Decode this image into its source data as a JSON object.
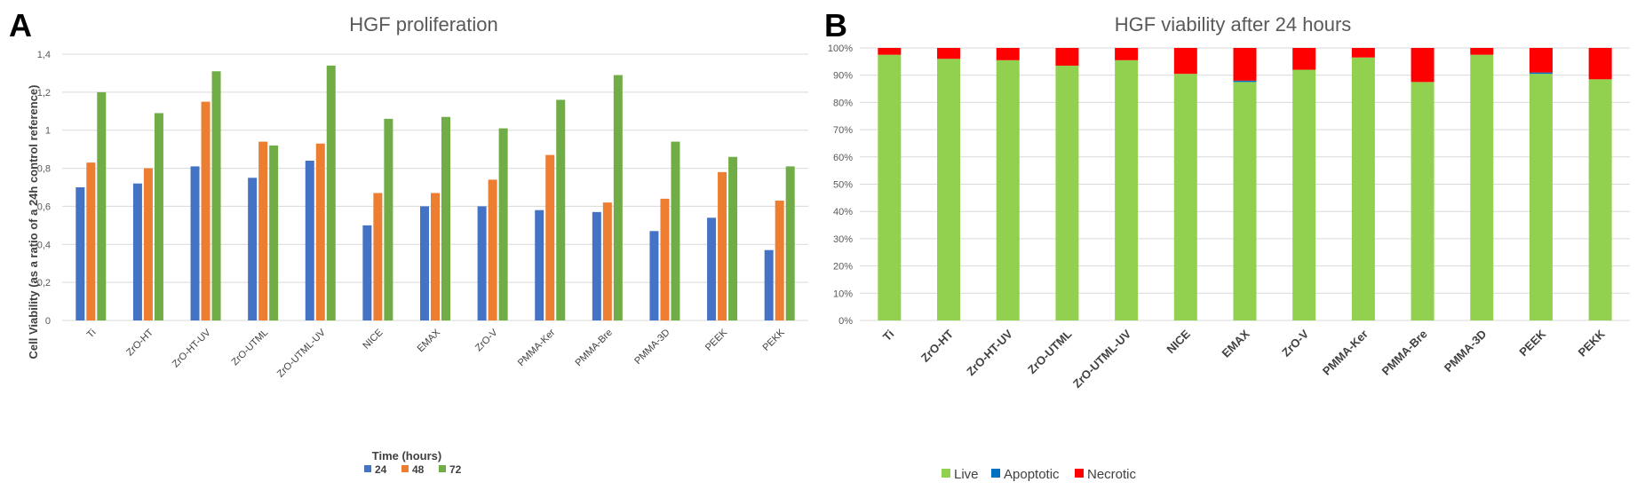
{
  "panels": {
    "a_letter": "A",
    "b_letter": "B"
  },
  "chart_data": [
    {
      "type": "bar",
      "title": "HGF proliferation",
      "ylabel": "Cell Viability  (as a ratio of a 24h control reference)",
      "xlabel": "",
      "ylim": [
        0,
        1.4
      ],
      "yticks": [
        "0",
        "0,2",
        "0,4",
        "0,6",
        "0,8",
        "1",
        "1,2",
        "1,4"
      ],
      "categories": [
        "Ti",
        "ZrO-HT",
        "ZrO-HT-UV",
        "ZrO-UTML",
        "ZrO-UTML-UV",
        "NICE",
        "EMAX",
        "ZrO-V",
        "PMMA-Ker",
        "PMMA-Bre",
        "PMMA-3D",
        "PEEK",
        "PEKK"
      ],
      "legend_title": "Time (hours)",
      "legend_position": "bottom",
      "grid": true,
      "series": [
        {
          "name": "24",
          "color": "#4472C4",
          "values": [
            0.7,
            0.72,
            0.81,
            0.75,
            0.84,
            0.5,
            0.6,
            0.6,
            0.58,
            0.57,
            0.47,
            0.54,
            0.37
          ]
        },
        {
          "name": "48",
          "color": "#ED7D31",
          "values": [
            0.83,
            0.8,
            1.15,
            0.94,
            0.93,
            0.67,
            0.67,
            0.74,
            0.87,
            0.62,
            0.64,
            0.78,
            0.63
          ]
        },
        {
          "name": "72",
          "color": "#70AD47",
          "values": [
            1.2,
            1.09,
            1.31,
            0.92,
            1.34,
            1.06,
            1.07,
            1.01,
            1.16,
            1.29,
            0.94,
            0.86,
            0.81
          ]
        }
      ]
    },
    {
      "type": "bar",
      "stacked": true,
      "title": "HGF viability after 24 hours",
      "ylim": [
        0,
        100
      ],
      "yticks": [
        "0%",
        "10%",
        "20%",
        "30%",
        "40%",
        "50%",
        "60%",
        "70%",
        "80%",
        "90%",
        "100%"
      ],
      "categories": [
        "Ti",
        "ZrO-HT",
        "ZrO-HT-UV",
        "ZrO-UTML",
        "ZrO-UTML-UV",
        "NICE",
        "EMAX",
        "ZrO-V",
        "PMMA-Ker",
        "PMMA-Bre",
        "PMMA-3D",
        "PEEK",
        "PEKK"
      ],
      "legend_position": "bottom",
      "grid": true,
      "series": [
        {
          "name": "Live",
          "color": "#92D050",
          "values": [
            97.5,
            96,
            95.5,
            93.5,
            95.5,
            90.5,
            87.5,
            92,
            96.5,
            87.5,
            97.5,
            90.5,
            88.5
          ]
        },
        {
          "name": "Apoptotic",
          "color": "#0070C0",
          "values": [
            0,
            0,
            0,
            0,
            0,
            0,
            0.5,
            0,
            0,
            0,
            0,
            0.5,
            0
          ]
        },
        {
          "name": "Necrotic",
          "color": "#FF0000",
          "values": [
            2.5,
            4,
            4.5,
            6.5,
            4.5,
            9.5,
            12,
            8,
            3.5,
            12.5,
            2.5,
            9,
            11.5
          ]
        }
      ]
    }
  ]
}
